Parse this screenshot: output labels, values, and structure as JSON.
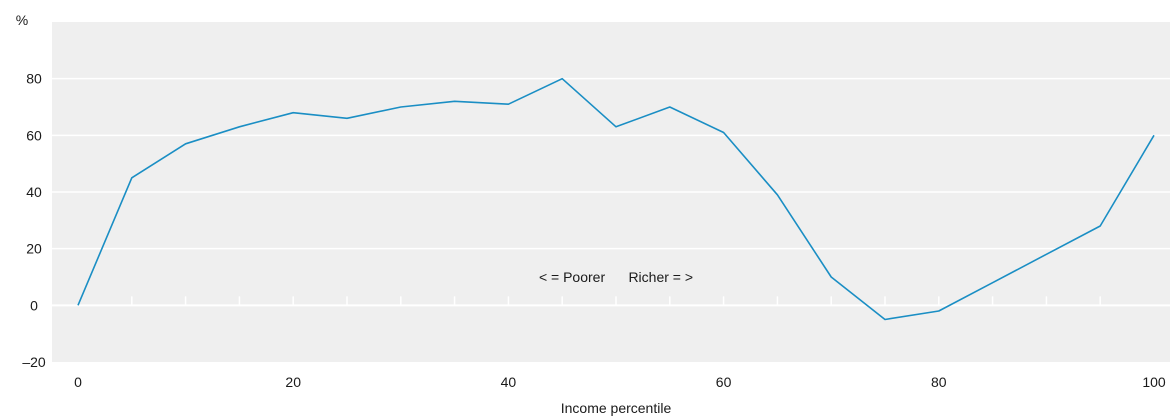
{
  "chart_data": {
    "type": "line",
    "title": "",
    "xlabel": "Income percentile",
    "ylabel": "%",
    "xlim": [
      0,
      100
    ],
    "ylim": [
      -20,
      100
    ],
    "xticks": [
      0,
      20,
      40,
      60,
      80,
      100
    ],
    "yticks": [
      -20,
      0,
      20,
      40,
      60,
      80
    ],
    "x_minor_ticks": [
      5,
      10,
      15,
      25,
      30,
      35,
      45,
      50,
      55,
      65,
      70,
      75,
      85,
      90,
      95
    ],
    "grid": true,
    "colors": {
      "line": "#1a8ec4",
      "plot_bg": "#efefef",
      "grid": "#ffffff"
    },
    "annotation": {
      "text": "< = Poorer      Richer = >",
      "x": 50,
      "y": 10
    },
    "series": [
      {
        "x": [
          0,
          5,
          10,
          15,
          20,
          25,
          30,
          35,
          40,
          45,
          50,
          55,
          60,
          65,
          70,
          75,
          80,
          85,
          90,
          95,
          100
        ],
        "values": [
          0,
          45,
          57,
          63,
          68,
          66,
          70,
          72,
          71,
          80,
          63,
          70,
          61,
          39,
          10,
          -5,
          -2,
          8,
          18,
          28,
          60
        ]
      }
    ]
  }
}
